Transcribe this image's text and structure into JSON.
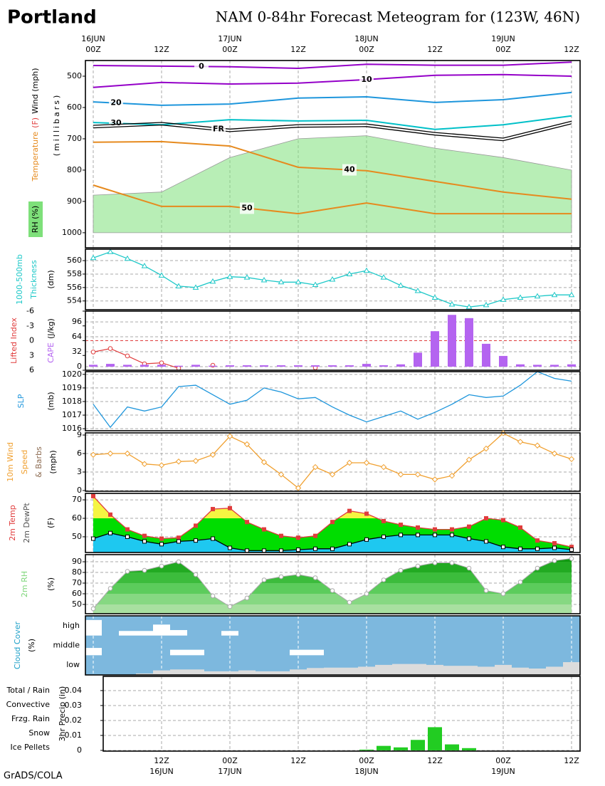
{
  "title": "Portland",
  "subtitle": "NAM 0-84hr Forecast Meteogram for (123W, 46N)",
  "credit": "GrADS/COLA",
  "x": [
    0,
    3,
    6,
    9,
    12,
    15,
    18,
    21,
    24,
    27,
    30,
    33,
    36,
    39,
    42,
    45,
    48,
    51,
    54,
    57,
    60,
    63,
    66,
    69,
    72,
    75,
    78,
    81,
    84
  ],
  "xticks": [
    {
      "value": 0,
      "label": "00Z"
    },
    {
      "value": 12,
      "label": "12Z"
    },
    {
      "value": 24,
      "label": "00Z"
    },
    {
      "value": 36,
      "label": "12Z"
    },
    {
      "value": 48,
      "label": "00Z"
    },
    {
      "value": 60,
      "label": "12Z"
    },
    {
      "value": 72,
      "label": "00Z"
    },
    {
      "value": 84,
      "label": "12Z"
    }
  ],
  "top_dates": [
    {
      "value": 0,
      "label": "16JUN"
    },
    {
      "value": 24,
      "label": "17JUN"
    },
    {
      "value": 48,
      "label": "18JUN"
    },
    {
      "value": 72,
      "label": "19JUN"
    }
  ],
  "bottom_dates": [
    {
      "value": 12,
      "label": "16JUN"
    },
    {
      "value": 24,
      "label": "17JUN"
    },
    {
      "value": 48,
      "label": "18JUN"
    },
    {
      "value": 72,
      "label": "19JUN"
    }
  ],
  "chart_data": [
    {
      "type": "meteogram",
      "ylabels": [
        [
          {
            "text": "Temperature",
            "color": "#e68a1e"
          },
          {
            "text": "(F)",
            "color": "#e03c3c"
          },
          {
            "text": "Wind (mph)",
            "color": "#000000"
          }
        ],
        [
          {
            "text": "(millibars)",
            "color": "#000000"
          }
        ]
      ],
      "rh_legend": "RH (%)",
      "rh_color": "#7ee07a",
      "xlim": [
        -1.375,
        85.5
      ],
      "ylim": [
        1048,
        450
      ],
      "yticks": [
        500,
        600,
        700,
        800,
        900,
        1000
      ],
      "x": [
        0,
        12,
        24,
        36,
        48,
        60,
        72,
        84
      ],
      "rh_top": [
        880,
        870,
        760,
        700,
        690,
        730,
        760,
        800
      ],
      "series": [
        {
          "name": "0",
          "color": "#9400c8",
          "values": [
            466,
            468,
            470,
            475,
            462,
            465,
            465,
            455
          ]
        },
        {
          "name": "10",
          "color": "#9400c8",
          "values": [
            536,
            520,
            525,
            522,
            511,
            497,
            495,
            500
          ]
        },
        {
          "name": "20",
          "color": "#1e96dc",
          "values": [
            582,
            593,
            589,
            570,
            566,
            584,
            575,
            552
          ]
        },
        {
          "name": "30",
          "color": "#00c0c8",
          "values": [
            648,
            655,
            639,
            643,
            641,
            670,
            655,
            627
          ]
        },
        {
          "name": "FR",
          "color": "#000000",
          "values": [
            661,
            652,
            673,
            659,
            657,
            684,
            702,
            648
          ]
        },
        {
          "name": "40",
          "color": "#e68a1e",
          "values": [
            711,
            709,
            723,
            791,
            802,
            836,
            870,
            893
          ]
        },
        {
          "name": "50",
          "color": "#e68a1e",
          "values": [
            848,
            916,
            916,
            939,
            905,
            939,
            939,
            939
          ]
        }
      ]
    },
    {
      "type": "line",
      "marker": "triangle",
      "grid": true,
      "ylabels": [
        [
          {
            "text": "1000-500mb",
            "color": "#1ec8c8"
          }
        ],
        [
          {
            "text": "Thickness",
            "color": "#1ec8c8"
          }
        ],
        [
          {
            "text": "(dm)",
            "color": "#000000"
          }
        ]
      ],
      "xlim": [
        -1.375,
        85.5
      ],
      "ylim": [
        552.7,
        561.7
      ],
      "yticks": [
        554,
        556,
        558,
        560
      ],
      "series": [
        {
          "color": "#1ec8c8",
          "values": [
            560.4,
            561.3,
            560.3,
            559.2,
            557.8,
            556.2,
            556,
            556.9,
            557.6,
            557.5,
            557.1,
            556.8,
            556.8,
            556.4,
            557.2,
            558,
            558.5,
            557.5,
            556.3,
            555.5,
            554.5,
            553.5,
            553.1,
            553.4,
            554.2,
            554.5,
            554.7,
            554.9,
            554.9
          ]
        }
      ]
    },
    {
      "type": "combo",
      "grid": true,
      "ylabels": [
        [
          {
            "text": "Lifted Index",
            "color": "#e03c3c"
          }
        ],
        [
          {
            "text": "CAPE",
            "color": "#b464f0"
          },
          {
            "text": "(J/kg)",
            "color": "#000000"
          }
        ]
      ],
      "xlim": [
        -1.375,
        85.5
      ],
      "ylim": [
        6,
        -6
      ],
      "yticks": [
        -6,
        -3,
        0,
        3,
        6
      ],
      "hline": 0,
      "y2lim": [
        -7.6,
        119
      ],
      "y2ticks": [
        0,
        32,
        64,
        96
      ],
      "series": [
        {
          "mark": "line",
          "color": "#e03c3c",
          "values": [
            2.3,
            1.6,
            3.1,
            4.7,
            4.5,
            5.6,
            null,
            5,
            null,
            null,
            null,
            null,
            null,
            5.5,
            null,
            null,
            null,
            null,
            null,
            null,
            null,
            null,
            null,
            null,
            null,
            null,
            null,
            null,
            null
          ]
        },
        {
          "mark": "bar",
          "axis": "y2",
          "color": "#b464f0",
          "values": [
            4,
            6,
            4,
            4,
            4,
            2,
            4,
            2,
            3,
            3,
            3,
            3,
            3,
            3,
            3,
            3,
            6,
            3,
            5,
            30,
            76,
            111,
            104,
            49,
            23,
            5,
            4,
            4,
            5
          ]
        }
      ]
    },
    {
      "type": "line",
      "marker": "none",
      "grid": true,
      "ylabels": [
        [
          {
            "text": "SLP",
            "color": "#1e96dc"
          }
        ],
        [
          {
            "text": "(mb)",
            "color": "#000000"
          }
        ]
      ],
      "xlim": [
        -1.375,
        85.5
      ],
      "ylim": [
        1015.85,
        1020.2
      ],
      "yticks": [
        1016,
        1017,
        1018,
        1019,
        1020
      ],
      "series": [
        {
          "color": "#1e96dc",
          "values": [
            1017.8,
            1016.1,
            1017.6,
            1017.3,
            1017.6,
            1019.1,
            1019.2,
            1018.5,
            1017.8,
            1018.1,
            1019,
            1018.7,
            1018.2,
            1018.3,
            1017.6,
            1017,
            1016.5,
            1016.9,
            1017.3,
            1016.7,
            1017.2,
            1017.8,
            1018.5,
            1018.3,
            1018.4,
            1019.2,
            1020.2,
            1019.7,
            1019.5
          ]
        }
      ]
    },
    {
      "type": "line",
      "marker": "diamond",
      "grid": true,
      "ylabels": [
        [
          {
            "text": "10m Wind",
            "color": "#f0a030"
          }
        ],
        [
          {
            "text": "Speed",
            "color": "#f0a030"
          }
        ],
        [
          {
            "text": "& Barbs",
            "color": "#8c6a50"
          }
        ],
        [
          {
            "text": "(mph)",
            "color": "#000000"
          }
        ]
      ],
      "xlim": [
        -1.375,
        85.5
      ],
      "ylim": [
        -0.12,
        9.35
      ],
      "yticks": [
        0,
        3,
        6,
        9
      ],
      "series": [
        {
          "color": "#f0a030",
          "values": [
            5.8,
            6,
            6,
            4.3,
            4.1,
            4.7,
            4.8,
            5.8,
            8.8,
            7.5,
            4.6,
            2.6,
            0.4,
            3.8,
            2.6,
            4.5,
            4.5,
            3.8,
            2.6,
            2.6,
            1.8,
            2.4,
            5,
            6.8,
            9.3,
            7.9,
            7.3,
            6,
            5.1
          ]
        }
      ]
    },
    {
      "type": "area",
      "grid": true,
      "ylabels": [
        [
          {
            "text": "2m Temp",
            "color": "#e03c3c"
          }
        ],
        [
          {
            "text": "2m DewPt",
            "color": "#555555"
          }
        ],
        [
          {
            "text": "(F)",
            "color": "#000000"
          }
        ]
      ],
      "xlim": [
        -1.375,
        85.5
      ],
      "ylim": [
        41.5,
        73.5
      ],
      "yticks": [
        50,
        60,
        70
      ],
      "series": [
        {
          "color": "#e03c3c",
          "fill": "#00dd00",
          "fill_above": "#f5f542",
          "values": [
            72,
            62,
            54,
            50.5,
            49,
            49.5,
            56,
            65,
            65.5,
            58,
            54,
            50.5,
            49.5,
            50.5,
            58,
            64,
            62.5,
            58.5,
            56.5,
            55,
            54,
            54,
            55.5,
            60,
            59,
            55,
            48,
            46.5,
            44.5
          ]
        },
        {
          "color": "#000000",
          "fill": "#1ec8f0",
          "values": [
            49,
            52,
            50,
            47.5,
            46,
            47.5,
            48,
            49,
            44,
            42.5,
            42.5,
            42.5,
            43,
            43.5,
            43.5,
            46,
            48.5,
            50,
            51,
            51,
            51,
            51,
            49,
            47.5,
            44.5,
            43.5,
            43.5,
            44,
            43
          ]
        }
      ]
    },
    {
      "type": "banded_area",
      "grid": true,
      "ylabels": [
        [
          {
            "text": "2m RH",
            "color": "#7ed67a"
          }
        ],
        [
          {
            "text": "(%)",
            "color": "#000000"
          }
        ]
      ],
      "xlim": [
        -1.375,
        85.5
      ],
      "ylim": [
        41.3,
        96.7
      ],
      "yticks": [
        50,
        60,
        70,
        80,
        90
      ],
      "band_colors": [
        "#a8e0a0",
        "#86d882",
        "#5ccc5c",
        "#3cbc3c",
        "#22aa22",
        "#119911"
      ],
      "series": [
        {
          "color": "#aaaaaa",
          "values": [
            46,
            65,
            81,
            82,
            86,
            90,
            78,
            58,
            48,
            56,
            73,
            76,
            78,
            75,
            63,
            52,
            60,
            73,
            82,
            86,
            89,
            89,
            84,
            63,
            60,
            71,
            84,
            91,
            93
          ]
        }
      ]
    },
    {
      "type": "cloud",
      "background": "#7db8de",
      "ylabels": [
        [
          {
            "text": "Cloud Cover",
            "color": "#1ea0c8"
          }
        ],
        [
          {
            "text": "(%)",
            "color": "#000000"
          }
        ]
      ],
      "xlim": [
        -1.375,
        85.5
      ],
      "series": [
        {
          "name": "high",
          "color": "#ffffff",
          "values": [
            85,
            0,
            25,
            25,
            60,
            30,
            0,
            0,
            25,
            0,
            0,
            0,
            0,
            0,
            0,
            0,
            0,
            0,
            0,
            0,
            0,
            0,
            0,
            0,
            0,
            0,
            0,
            0,
            0
          ]
        },
        {
          "name": "middle",
          "color": "#ffffff",
          "values": [
            40,
            0,
            0,
            0,
            0,
            30,
            30,
            0,
            0,
            0,
            0,
            0,
            30,
            30,
            0,
            0,
            0,
            0,
            0,
            0,
            0,
            0,
            0,
            0,
            0,
            0,
            0,
            0,
            0
          ]
        },
        {
          "name": "low",
          "color": "#dcdcdc",
          "values": [
            0,
            0,
            0,
            8,
            25,
            30,
            30,
            20,
            20,
            25,
            20,
            20,
            30,
            38,
            40,
            40,
            45,
            55,
            60,
            60,
            55,
            50,
            50,
            45,
            55,
            40,
            35,
            45,
            70
          ]
        }
      ]
    },
    {
      "type": "bar",
      "grid": true,
      "ylabels": [
        [
          {
            "text": "3hr Precip (in)",
            "color": "#000000"
          }
        ]
      ],
      "legend": [
        {
          "text": "Total / Rain",
          "color": "#22cc22"
        },
        {
          "text": "Convective",
          "color": "#e83030"
        },
        {
          "text": "Frzg. Rain",
          "color": "#f0a030"
        },
        {
          "text": "Snow",
          "color": "#4444ff"
        },
        {
          "text": "Ice Pellets",
          "color": "#22cccc"
        }
      ],
      "xlim": [
        1.75,
        85.5
      ],
      "ylim": [
        -0.0005,
        0.0495
      ],
      "yticks": [
        0,
        0.01,
        0.02,
        0.03,
        0.04
      ],
      "x": [
        3,
        6,
        9,
        12,
        15,
        18,
        21,
        24,
        27,
        30,
        33,
        36,
        39,
        42,
        45,
        48,
        51,
        54,
        57,
        60,
        63,
        66,
        69,
        72,
        75,
        78,
        81,
        84
      ],
      "series": [
        {
          "color": "#22cc22",
          "values": [
            0,
            0,
            0,
            0,
            0,
            0,
            0,
            0,
            0,
            0,
            0,
            0,
            0,
            0,
            0,
            0.0005,
            0.003,
            0.002,
            0.007,
            0.0155,
            0.004,
            0.0015,
            0,
            0,
            0,
            0,
            0,
            0
          ]
        }
      ]
    }
  ]
}
